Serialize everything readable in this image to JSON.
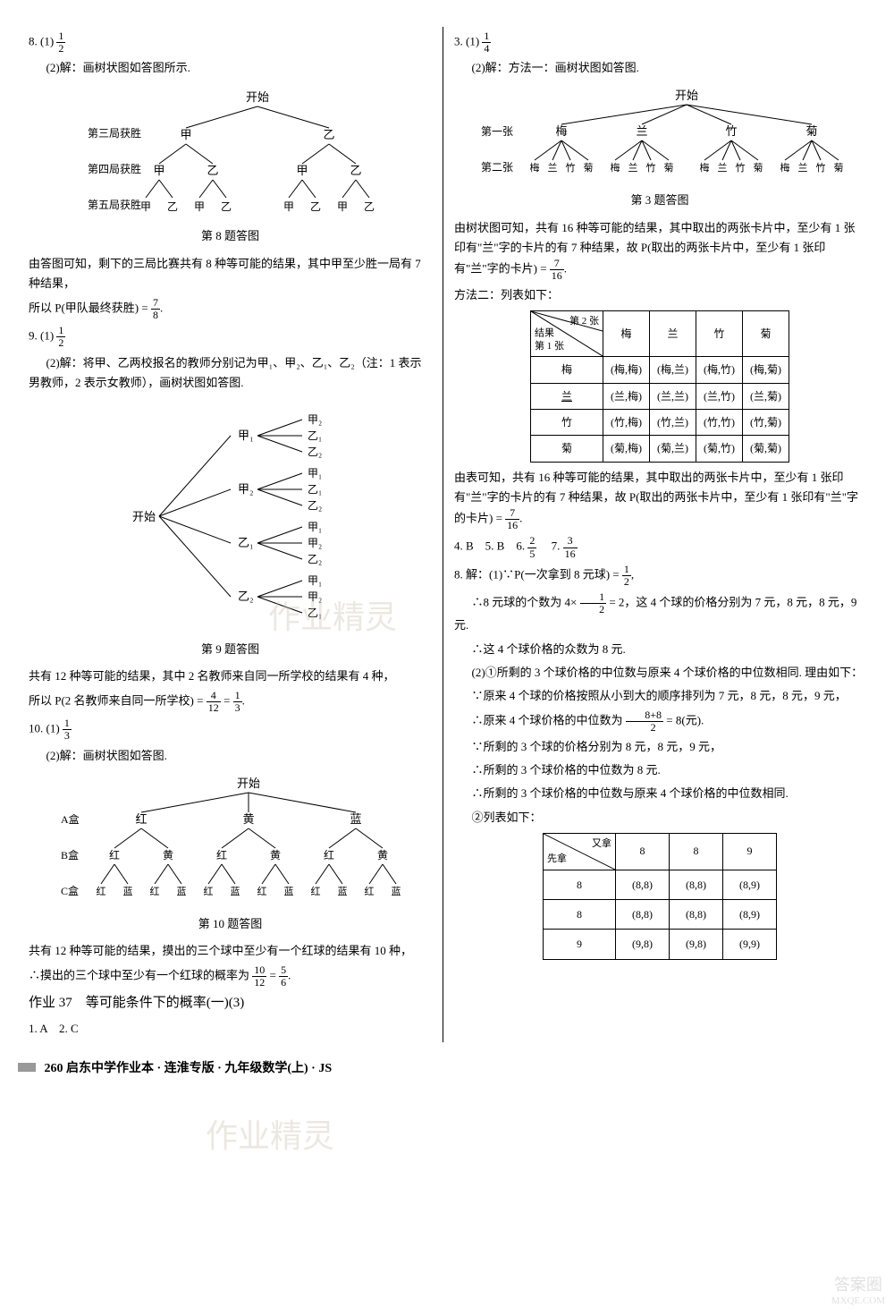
{
  "left": {
    "q8_1": "8. (1)",
    "q8_1_frac": {
      "n": "1",
      "d": "2"
    },
    "q8_2": "(2)解：画树状图如答图所示.",
    "tree8": {
      "root": "开始",
      "row_labels": [
        "第三局获胜",
        "第四局获胜",
        "第五局获胜"
      ],
      "l1": [
        "甲",
        "乙"
      ],
      "l2": [
        "甲",
        "乙",
        "甲",
        "乙"
      ],
      "l3": [
        "甲",
        "乙",
        "甲",
        "乙",
        "甲",
        "乙",
        "甲",
        "乙"
      ]
    },
    "cap8": "第 8 题答图",
    "q8_t1": "由答图可知，剩下的三局比赛共有 8 种等可能的结果，其中甲至少胜一局有 7 种结果，",
    "q8_t2a": "所以 P(甲队最终获胜) = ",
    "q8_t2_frac": {
      "n": "7",
      "d": "8"
    },
    "q9_1": "9. (1)",
    "q9_1_frac": {
      "n": "1",
      "d": "2"
    },
    "q9_2": "(2)解：将甲、乙两校报名的教师分别记为甲₁、甲₂、乙₁、乙₂（注：1 表示男教师，2 表示女教师），画树状图如答图.",
    "tree9": {
      "root": "开始",
      "l1": [
        "甲₁",
        "甲₂",
        "乙₁",
        "乙₂"
      ],
      "l2": [
        [
          "甲₂",
          "乙₁",
          "乙₂"
        ],
        [
          "甲₁",
          "乙₁",
          "乙₂"
        ],
        [
          "甲₁",
          "甲₂",
          "乙₂"
        ],
        [
          "甲₁",
          "甲₂",
          "乙₁"
        ]
      ]
    },
    "cap9": "第 9 题答图",
    "q9_t1": "共有 12 种等可能的结果，其中 2 名教师来自同一所学校的结果有 4 种，",
    "q9_t2a": "所以 P(2 名教师来自同一所学校) = ",
    "q9_t2_f1": {
      "n": "4",
      "d": "12"
    },
    "q9_t2_eq": " = ",
    "q9_t2_f2": {
      "n": "1",
      "d": "3"
    },
    "q10_1": "10. (1)",
    "q10_1_frac": {
      "n": "1",
      "d": "3"
    },
    "q10_2": "(2)解：画树状图如答图.",
    "tree10": {
      "root": "开始",
      "row_labels": [
        "A盒",
        "B盒",
        "C盒"
      ],
      "l1": [
        "红",
        "黄",
        "蓝"
      ],
      "l2": [
        "红",
        "黄",
        "红",
        "黄",
        "红",
        "黄"
      ],
      "l3": [
        "红",
        "蓝",
        "红",
        "蓝",
        "红",
        "蓝",
        "红",
        "蓝",
        "红",
        "蓝",
        "红",
        "蓝"
      ]
    },
    "cap10": "第 10 题答图",
    "q10_t1": "共有 12 种等可能的结果，摸出的三个球中至少有一个红球的结果有 10 种，",
    "q10_t2a": "∴摸出的三个球中至少有一个红球的概率为",
    "q10_t2_f1": {
      "n": "10",
      "d": "12"
    },
    "q10_t2_eq": " = ",
    "q10_t2_f2": {
      "n": "5",
      "d": "6"
    },
    "hw37": "作业 37　等可能条件下的概率(一)(3)",
    "hw37_ans": "1. A　2. C"
  },
  "right": {
    "q3_1": "3. (1)",
    "q3_1_frac": {
      "n": "1",
      "d": "4"
    },
    "q3_2": "(2)解：方法一：画树状图如答图.",
    "tree3": {
      "root": "开始",
      "row_labels": [
        "第一张",
        "第二张"
      ],
      "l1": [
        "梅",
        "兰",
        "竹",
        "菊"
      ],
      "l2": [
        "梅",
        "兰",
        "竹",
        "菊",
        "梅",
        "兰",
        "竹",
        "菊",
        "梅",
        "兰",
        "竹",
        "菊",
        "梅",
        "兰",
        "竹",
        "菊"
      ]
    },
    "cap3": "第 3 题答图",
    "q3_t1": "由树状图可知，共有 16 种等可能的结果，其中取出的两张卡片中，至少有 1 张印有\"兰\"字的卡片的有 7 种结果，故 P(取出的两张卡片中，至少有 1 张印有\"兰\"字的卡片) = ",
    "q3_t1_frac": {
      "n": "7",
      "d": "16"
    },
    "q3_m2": "方法二：列表如下：",
    "table3": {
      "diag_tl": "第 2 张",
      "diag_mid": "结果",
      "diag_bl": "第 1 张",
      "cols": [
        "梅",
        "兰",
        "竹",
        "菊"
      ],
      "rows": [
        "梅",
        "兰",
        "竹",
        "菊"
      ],
      "cells": [
        [
          "(梅,梅)",
          "(梅,兰)",
          "(梅,竹)",
          "(梅,菊)"
        ],
        [
          "(兰,梅)",
          "(兰,兰)",
          "(兰,竹)",
          "(兰,菊)"
        ],
        [
          "(竹,梅)",
          "(竹,兰)",
          "(竹,竹)",
          "(竹,菊)"
        ],
        [
          "(菊,梅)",
          "(菊,兰)",
          "(菊,竹)",
          "(菊,菊)"
        ]
      ]
    },
    "q3_t2": "由表可知，共有 16 种等可能的结果，其中取出的两张卡片中，至少有 1 张印有\"兰\"字的卡片的有 7 种结果，故 P(取出的两张卡片中，至少有 1 张印有\"兰\"字的卡片) = ",
    "q3_t2_frac": {
      "n": "7",
      "d": "16"
    },
    "q4_7a": "4. B　5. B　6. ",
    "q6_frac": {
      "n": "2",
      "d": "5"
    },
    "q7a": "　7. ",
    "q7_frac": {
      "n": "3",
      "d": "16"
    },
    "q8r_1a": "8. 解：(1)∵P(一次拿到 8 元球) = ",
    "q8r_1_frac": {
      "n": "1",
      "d": "2"
    },
    "q8r_2a": "∴8 元球的个数为 4×",
    "q8r_2_frac": {
      "n": "1",
      "d": "2"
    },
    "q8r_2b": " = 2，这 4 个球的价格分别为 7 元，8 元，8 元，9 元.",
    "q8r_3": "∴这 4 个球价格的众数为 8 元.",
    "q8r_4": "(2)①所剩的 3 个球价格的中位数与原来 4 个球价格的中位数相同. 理由如下：",
    "q8r_5": "∵原来 4 个球的价格按照从小到大的顺序排列为 7 元，8 元，8 元，9 元，",
    "q8r_6a": "∴原来 4 个球价格的中位数为",
    "q8r_6_frac": {
      "n": "8+8",
      "d": "2"
    },
    "q8r_6b": " = 8(元).",
    "q8r_7": "∵所剩的 3 个球的价格分别为 8 元，8 元，9 元，",
    "q8r_8": "∴所剩的 3 个球价格的中位数为 8 元.",
    "q8r_9": "∴所剩的 3 个球价格的中位数与原来 4 个球价格的中位数相同.",
    "q8r_10": "②列表如下：",
    "table8": {
      "diag_tl": "又拿",
      "diag_bl": "先拿",
      "cols": [
        "8",
        "8",
        "9"
      ],
      "rows": [
        "8",
        "8",
        "9"
      ],
      "cells": [
        [
          "(8,8)",
          "(8,8)",
          "(8,9)"
        ],
        [
          "(8,8)",
          "(8,8)",
          "(8,9)"
        ],
        [
          "(9,8)",
          "(9,8)",
          "(9,9)"
        ]
      ]
    }
  },
  "footer": "260 启东中学作业本 · 连淮专版 · 九年级数学(上) · JS",
  "watermark1": "作业精灵",
  "watermark2": "作业精灵",
  "corner": {
    "l1": "答案圈",
    "l2": "MXQE.COM"
  }
}
